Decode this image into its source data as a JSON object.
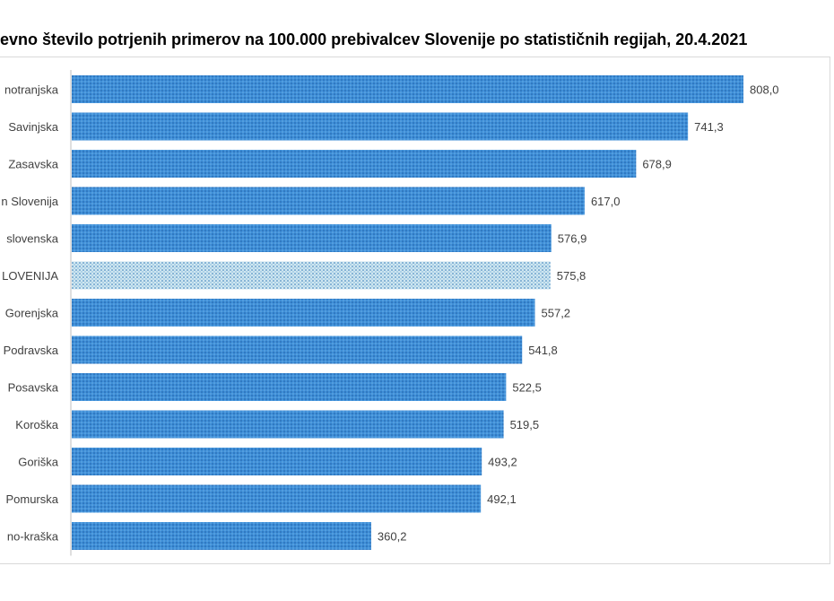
{
  "chart_data": {
    "type": "bar",
    "orientation": "horizontal",
    "title": "evno število potrjenih primerov na 100.000 prebivalcev Slovenije po statističnih regijah, 20.4.2021",
    "categories": [
      "notranjska",
      "Savinjska",
      "Zasavska",
      "n Slovenija",
      "slovenska",
      "LOVENIJA",
      "Gorenjska",
      "Podravska",
      "Posavska",
      "Koroška",
      "Goriška",
      "Pomurska",
      "no-kraška"
    ],
    "values": [
      808.0,
      741.3,
      678.9,
      617.0,
      576.9,
      575.8,
      557.2,
      541.8,
      522.5,
      519.5,
      493.2,
      492.1,
      360.2
    ],
    "value_labels": [
      "808,0",
      "741,3",
      "678,9",
      "617,0",
      "576,9",
      "575,8",
      "557,2",
      "541,8",
      "522,5",
      "519,5",
      "493,2",
      "492,1",
      "360,2"
    ],
    "highlighted": [
      false,
      false,
      false,
      false,
      false,
      true,
      false,
      false,
      false,
      false,
      false,
      false,
      false
    ],
    "xlim": [
      0,
      808
    ],
    "grid": false,
    "legend": "none",
    "colors": {
      "bar": "#3f8fd8",
      "bar_dots": "#1f5fa6",
      "highlight": "#cfe6f0",
      "highlight_dots": "#2f78b8",
      "axis": "#bfbfbf",
      "text": "#404040"
    }
  }
}
